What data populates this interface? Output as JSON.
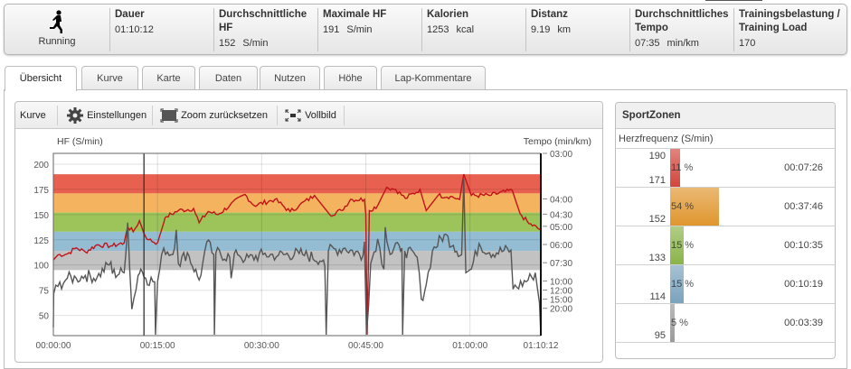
{
  "summary": {
    "sport": "Running",
    "stats": [
      {
        "label": "Dauer",
        "value": "01:10:12",
        "unit": ""
      },
      {
        "label": "Durchschnittliche HF",
        "value": "152",
        "unit": "S/min"
      },
      {
        "label": "Maximale HF",
        "value": "191",
        "unit": "S/min"
      },
      {
        "label": "Kalorien",
        "value": "1253",
        "unit": "kcal"
      },
      {
        "label": "Distanz",
        "value": "9.19",
        "unit": "km"
      },
      {
        "label": "Durchschnittliches Tempo",
        "value": "07:35",
        "unit": "min/km"
      },
      {
        "label": "Trainingsbelastung / Training Load",
        "value": "170",
        "unit": ""
      }
    ]
  },
  "tabs": [
    "Übersicht",
    "Kurve",
    "Karte",
    "Daten",
    "Nutzen",
    "Höhe",
    "Lap-Kommentare"
  ],
  "active_tab": "Übersicht",
  "curve_panel": {
    "title": "Kurve",
    "settings": "Einstellungen",
    "zoom_reset": "Zoom zurücksetzen",
    "fullscreen": "Vollbild"
  },
  "chart_data": {
    "type": "line",
    "ylabel_left": "HF (S/min)",
    "ylabel_right": "Tempo (min/km)",
    "x_unit": "minutes",
    "xlim": [
      0,
      70.2
    ],
    "x_ticks": [
      {
        "v": 0,
        "label": "00:00:00"
      },
      {
        "v": 15,
        "label": "00:15:00"
      },
      {
        "v": 30,
        "label": "00:30:00"
      },
      {
        "v": 45,
        "label": "00:45:00"
      },
      {
        "v": 60,
        "label": "01:00:00"
      },
      {
        "v": 70.2,
        "label": "01:10:12"
      }
    ],
    "ylim_left": [
      30,
      210.7
    ],
    "y_ticks_left": [
      50,
      75,
      100,
      125,
      150,
      175,
      200
    ],
    "right_axis_unit": "km/h speed mapped to pace labels",
    "ylim_right_speed": [
      0,
      20
    ],
    "y_ticks_right": [
      {
        "speed": 20,
        "label": "03:00"
      },
      {
        "speed": 15,
        "label": "04:00"
      },
      {
        "speed": 13.33,
        "label": "04:30"
      },
      {
        "speed": 12,
        "label": "05:00"
      },
      {
        "speed": 10,
        "label": "06:00"
      },
      {
        "speed": 8,
        "label": "07:30"
      },
      {
        "speed": 6,
        "label": "10:00"
      },
      {
        "speed": 5,
        "label": "12:00"
      },
      {
        "speed": 4,
        "label": "15:00"
      },
      {
        "speed": 3,
        "label": "20:00"
      }
    ],
    "zone_bands": [
      {
        "from": 171,
        "to": 190,
        "color": "#e8604f"
      },
      {
        "from": 152,
        "to": 171,
        "color": "#f4b35e"
      },
      {
        "from": 133,
        "to": 152,
        "color": "#9cc45a"
      },
      {
        "from": 114,
        "to": 133,
        "color": "#94bdd4"
      },
      {
        "from": 95,
        "to": 114,
        "color": "#c2c2c2"
      }
    ],
    "marker_time": 13.05,
    "series": [
      {
        "name": "HF",
        "color": "#c0141a",
        "axis": "left",
        "points": [
          [
            0,
            105
          ],
          [
            0.65,
            110
          ],
          [
            2,
            111
          ],
          [
            3.3,
            117
          ],
          [
            4.6,
            113
          ],
          [
            6.3,
            120
          ],
          [
            8.5,
            119
          ],
          [
            10.2,
            122
          ],
          [
            10.7,
            138
          ],
          [
            11.5,
            133
          ],
          [
            12.4,
            144
          ],
          [
            13,
            132
          ],
          [
            13.7,
            125
          ],
          [
            15,
            122
          ],
          [
            15.9,
            142
          ],
          [
            16.3,
            148
          ],
          [
            18,
            154
          ],
          [
            20.2,
            156
          ],
          [
            21,
            142
          ],
          [
            22.3,
            153
          ],
          [
            23.7,
            150
          ],
          [
            25.4,
            159
          ],
          [
            27.6,
            170
          ],
          [
            28.9,
            159
          ],
          [
            31.9,
            165
          ],
          [
            34.1,
            153
          ],
          [
            35.4,
            159
          ],
          [
            37.6,
            169
          ],
          [
            39.8,
            150
          ],
          [
            41.5,
            154
          ],
          [
            42.8,
            165
          ],
          [
            44.8,
            165
          ],
          [
            45.0,
            150
          ],
          [
            45.2,
            31
          ],
          [
            45.5,
            154
          ],
          [
            46.7,
            159
          ],
          [
            48,
            177
          ],
          [
            49.3,
            175
          ],
          [
            50.7,
            166
          ],
          [
            52.8,
            175
          ],
          [
            53.7,
            154
          ],
          [
            55.4,
            169
          ],
          [
            57.2,
            168
          ],
          [
            58.5,
            165
          ],
          [
            59.1,
            190
          ],
          [
            60.2,
            169
          ],
          [
            62.8,
            169
          ],
          [
            66.1,
            174
          ],
          [
            67.2,
            151
          ],
          [
            68.5,
            141
          ],
          [
            70.2,
            135
          ]
        ]
      },
      {
        "name": "Tempo",
        "color": "#555555",
        "axis": "right",
        "points": [
          [
            0,
            0.9
          ],
          [
            0.05,
            4.6
          ],
          [
            0.65,
            5.4
          ],
          [
            2,
            6.3
          ],
          [
            3.3,
            6.3
          ],
          [
            4.6,
            6.6
          ],
          [
            6.3,
            6.4
          ],
          [
            8.3,
            8.1
          ],
          [
            8.5,
            6.8
          ],
          [
            10.2,
            6.9
          ],
          [
            10.7,
            12.4
          ],
          [
            11.3,
            2.9
          ],
          [
            12.2,
            6.6
          ],
          [
            12.6,
            7.3
          ],
          [
            13.3,
            6.3
          ],
          [
            14.6,
            5.9
          ],
          [
            14.7,
            0.1
          ],
          [
            15,
            5.9
          ],
          [
            15.9,
            9.6
          ],
          [
            17.2,
            8.9
          ],
          [
            17.7,
            11.6
          ],
          [
            18,
            7.9
          ],
          [
            19.3,
            9.1
          ],
          [
            21,
            6.1
          ],
          [
            21.5,
            7.9
          ],
          [
            22.1,
            10.3
          ],
          [
            23.1,
            8.9
          ],
          [
            23.2,
            0.1
          ],
          [
            23.4,
            9.1
          ],
          [
            25.4,
            8.6
          ],
          [
            25.6,
            6.3
          ],
          [
            26.3,
            9.4
          ],
          [
            27.6,
            8.3
          ],
          [
            30.2,
            8.9
          ],
          [
            32.4,
            8.8
          ],
          [
            35.4,
            9.0
          ],
          [
            35.9,
            8.9
          ],
          [
            38.9,
            8.3
          ],
          [
            39.1,
            7.6
          ],
          [
            39.3,
            0.1
          ],
          [
            39.6,
            9.3
          ],
          [
            42,
            9.6
          ],
          [
            44.6,
            8.8
          ],
          [
            44.8,
            10.3
          ],
          [
            45.1,
            0.1
          ],
          [
            45.7,
            7.9
          ],
          [
            46.7,
            10.6
          ],
          [
            47.6,
            7.3
          ],
          [
            47.8,
            11.9
          ],
          [
            48.5,
            8.9
          ],
          [
            49.8,
            9.9
          ],
          [
            50.2,
            9.6
          ],
          [
            50.3,
            0.1
          ],
          [
            50.6,
            9.3
          ],
          [
            52.4,
            8.6
          ],
          [
            53,
            4
          ],
          [
            53.7,
            5.6
          ],
          [
            54.6,
            9.3
          ],
          [
            56.3,
            11.1
          ],
          [
            57.6,
            9.9
          ],
          [
            58.8,
            8.9
          ],
          [
            59.1,
            17.2
          ],
          [
            59.4,
            6.9
          ],
          [
            60.2,
            7.3
          ],
          [
            61.3,
            10.1
          ],
          [
            62.8,
            9.1
          ],
          [
            65.9,
            9.4
          ],
          [
            66.2,
            5.1
          ],
          [
            68.9,
            6.4
          ],
          [
            69.4,
            6.9
          ],
          [
            70,
            3.6
          ],
          [
            70.2,
            0.1
          ]
        ]
      }
    ]
  },
  "sport_zones": {
    "title": "SportZonen",
    "subtitle": "Herzfrequenz (S/min)",
    "zones": [
      {
        "upper": "190",
        "lower": "171",
        "percent": "11 %",
        "pct": 11,
        "time": "00:07:26",
        "color": "#d2463c"
      },
      {
        "upper": "",
        "lower": "152",
        "percent": "54 %",
        "pct": 54,
        "time": "00:37:46",
        "color": "#e0962e"
      },
      {
        "upper": "",
        "lower": "133",
        "percent": "15 %",
        "pct": 15,
        "time": "00:10:35",
        "color": "#8ab44a"
      },
      {
        "upper": "",
        "lower": "114",
        "percent": "15 %",
        "pct": 15,
        "time": "00:10:19",
        "color": "#7aa3bd"
      },
      {
        "upper": "",
        "lower": "95",
        "percent": "5 %",
        "pct": 5,
        "time": "00:03:39",
        "color": "#9a9a9a"
      }
    ]
  }
}
